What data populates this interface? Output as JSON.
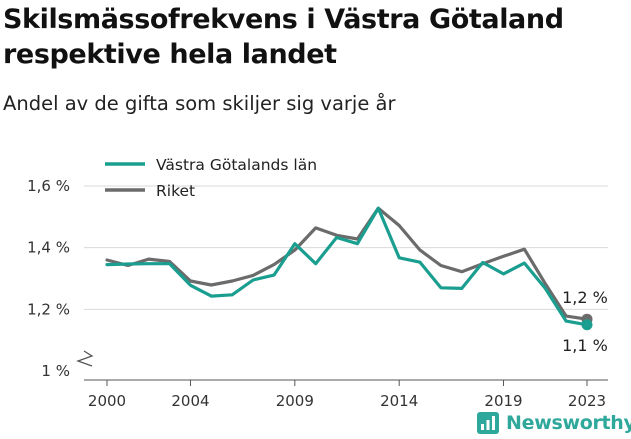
{
  "title": "Skilsmässofrekvens i Västra Götaland respektive hela landet",
  "subtitle": "Andel av de gifta som skiljer sig varje år",
  "brand": "Newsworthy",
  "chart_data": {
    "type": "line",
    "x": [
      2000,
      2001,
      2002,
      2003,
      2004,
      2005,
      2006,
      2007,
      2008,
      2009,
      2010,
      2011,
      2012,
      2013,
      2014,
      2015,
      2016,
      2017,
      2018,
      2019,
      2020,
      2021,
      2022,
      2023
    ],
    "series": [
      {
        "name": "Västra Götalands län",
        "color": "#1a9e8f",
        "values": [
          1.345,
          1.347,
          1.348,
          1.348,
          1.278,
          1.243,
          1.247,
          1.295,
          1.311,
          1.413,
          1.348,
          1.433,
          1.413,
          1.528,
          1.367,
          1.353,
          1.27,
          1.268,
          1.352,
          1.315,
          1.35,
          1.268,
          1.162,
          1.15
        ]
      },
      {
        "name": "Riket",
        "color": "#6b6b6b",
        "values": [
          1.36,
          1.342,
          1.363,
          1.355,
          1.292,
          1.279,
          1.292,
          1.31,
          1.345,
          1.392,
          1.464,
          1.44,
          1.428,
          1.528,
          1.472,
          1.392,
          1.342,
          1.322,
          1.348,
          1.372,
          1.395,
          1.283,
          1.178,
          1.168
        ]
      }
    ],
    "end_labels": [
      {
        "series": "Riket",
        "text": "1,2 %"
      },
      {
        "series": "Västra Götalands län",
        "text": "1,1 %"
      }
    ],
    "y_ticks": [
      {
        "value": 1.0,
        "label": "1 %"
      },
      {
        "value": 1.2,
        "label": "1,2 %"
      },
      {
        "value": 1.4,
        "label": "1,4 %"
      },
      {
        "value": 1.6,
        "label": "1,6 %"
      }
    ],
    "x_ticks": [
      2000,
      2004,
      2009,
      2014,
      2019,
      2023
    ],
    "ylim": [
      1.0,
      1.6
    ],
    "axis_break": true,
    "grid": true,
    "legend": "top-left"
  }
}
